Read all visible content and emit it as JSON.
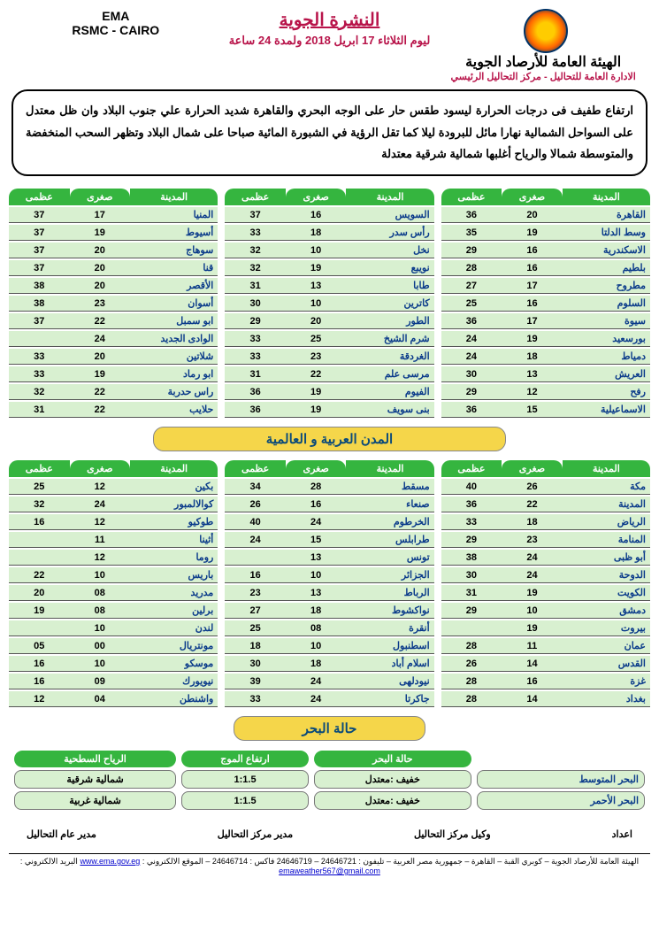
{
  "header": {
    "org_title": "الهيئة العامة للأرصاد الجوية",
    "org_sub": "الادارة العامة للتحاليل - مركز التحاليل الرئيسي",
    "left_line1": "EMA",
    "left_line2": "RSMC - CAIRO",
    "bulletin_title": "النشرة الجوية",
    "bulletin_date": "ليوم الثلاثاء 17 ابريل 2018 ولمدة 24 ساعة"
  },
  "synopsis": "ارتفاع طفيف فى درجات الحرارة ليسود طقس  حار على الوجه البحري والقاهرة  شديد الحرارة علي جنوب البلاد وان ظل معتدل على السواحل الشمالية نهارا مائل للبرودة ليلا  كما تقل الرؤية في الشبورة المائية صباحا على شمال البلاد  وتظهر السحب المنخفضة والمتوسطة شمالا والرياح أغلبها شمالية شرقية  معتدلة",
  "col_headers": {
    "city": "المدينة",
    "min": "صغرى",
    "max": "عظمى"
  },
  "egypt_tables": [
    [
      {
        "city": "القاهرة",
        "min": "20",
        "max": "36"
      },
      {
        "city": "وسط الدلتا",
        "min": "19",
        "max": "35"
      },
      {
        "city": "الاسكندرية",
        "min": "16",
        "max": "29"
      },
      {
        "city": "بلطيم",
        "min": "16",
        "max": "28"
      },
      {
        "city": "مطروح",
        "min": "17",
        "max": "27"
      },
      {
        "city": "السلوم",
        "min": "16",
        "max": "25"
      },
      {
        "city": "سيوة",
        "min": "17",
        "max": "36"
      },
      {
        "city": "بورسعيد",
        "min": "19",
        "max": "24"
      },
      {
        "city": "دمياط",
        "min": "18",
        "max": "24"
      },
      {
        "city": "العريش",
        "min": "13",
        "max": "30"
      },
      {
        "city": "رفح",
        "min": "12",
        "max": "29"
      },
      {
        "city": "الاسماعيلية",
        "min": "15",
        "max": "36"
      }
    ],
    [
      {
        "city": "السويس",
        "min": "16",
        "max": "37"
      },
      {
        "city": "رأس سدر",
        "min": "18",
        "max": "33"
      },
      {
        "city": "نخل",
        "min": "10",
        "max": "32"
      },
      {
        "city": "نويبع",
        "min": "19",
        "max": "32"
      },
      {
        "city": "طابا",
        "min": "13",
        "max": "31"
      },
      {
        "city": "كاترين",
        "min": "10",
        "max": "30"
      },
      {
        "city": "الطور",
        "min": "20",
        "max": "29"
      },
      {
        "city": "شرم الشيخ",
        "min": "25",
        "max": "33"
      },
      {
        "city": "الغردقة",
        "min": "23",
        "max": "33"
      },
      {
        "city": "مرسى علم",
        "min": "22",
        "max": "31"
      },
      {
        "city": "الفيوم",
        "min": "19",
        "max": "36"
      },
      {
        "city": "بنى سويف",
        "min": "19",
        "max": "36"
      }
    ],
    [
      {
        "city": "المنيا",
        "min": "17",
        "max": "37"
      },
      {
        "city": "أسيوط",
        "min": "19",
        "max": "37"
      },
      {
        "city": "سوهاج",
        "min": "20",
        "max": "37"
      },
      {
        "city": "قنا",
        "min": "20",
        "max": "37"
      },
      {
        "city": "الأقصر",
        "min": "20",
        "max": "38"
      },
      {
        "city": "أسوان",
        "min": "23",
        "max": "38"
      },
      {
        "city": "ابو سمبل",
        "min": "22",
        "max": "37"
      },
      {
        "city": "الوادى الجديد",
        "min": "24",
        "max": ""
      },
      {
        "city": "شلاتين",
        "min": "20",
        "max": "33"
      },
      {
        "city": "ابو رماد",
        "min": "19",
        "max": "33"
      },
      {
        "city": "راس حدربة",
        "min": "22",
        "max": "32"
      },
      {
        "city": "حلايب",
        "min": "22",
        "max": "31"
      }
    ]
  ],
  "world_section_title": "المدن العربية و العالمية",
  "world_tables": [
    [
      {
        "city": "مكة",
        "min": "26",
        "max": "40"
      },
      {
        "city": "المدينة",
        "min": "22",
        "max": "36"
      },
      {
        "city": "الرياض",
        "min": "18",
        "max": "33"
      },
      {
        "city": "المنامة",
        "min": "23",
        "max": "29"
      },
      {
        "city": "أبو ظبى",
        "min": "24",
        "max": "38"
      },
      {
        "city": "الدوحة",
        "min": "24",
        "max": "30"
      },
      {
        "city": "الكويت",
        "min": "19",
        "max": "31"
      },
      {
        "city": "دمشق",
        "min": "10",
        "max": "29"
      },
      {
        "city": "بيروت",
        "min": "19",
        "max": ""
      },
      {
        "city": "عمان",
        "min": "11",
        "max": "28"
      },
      {
        "city": "القدس",
        "min": "14",
        "max": "26"
      },
      {
        "city": "غزة",
        "min": "16",
        "max": "28"
      },
      {
        "city": "بغداد",
        "min": "14",
        "max": "28"
      }
    ],
    [
      {
        "city": "مسقط",
        "min": "28",
        "max": "34"
      },
      {
        "city": "صنعاء",
        "min": "16",
        "max": "26"
      },
      {
        "city": "الخرطوم",
        "min": "24",
        "max": "40"
      },
      {
        "city": "طرابلس",
        "min": "15",
        "max": "24"
      },
      {
        "city": "تونس",
        "min": "13",
        "max": ""
      },
      {
        "city": "الجزائر",
        "min": "10",
        "max": "16"
      },
      {
        "city": "الرباط",
        "min": "13",
        "max": "23"
      },
      {
        "city": "نواكشوط",
        "min": "18",
        "max": "27"
      },
      {
        "city": "أنقرة",
        "min": "08",
        "max": "25"
      },
      {
        "city": "اسطنبول",
        "min": "10",
        "max": "18"
      },
      {
        "city": "اسلام أباد",
        "min": "18",
        "max": "30"
      },
      {
        "city": "نيودلهى",
        "min": "24",
        "max": "39"
      },
      {
        "city": "جاكرتا",
        "min": "24",
        "max": "33"
      }
    ],
    [
      {
        "city": "بكين",
        "min": "12",
        "max": "25"
      },
      {
        "city": "كوالالمبور",
        "min": "24",
        "max": "32"
      },
      {
        "city": "طوكيو",
        "min": "12",
        "max": "16"
      },
      {
        "city": "أثينا",
        "min": "11",
        "max": ""
      },
      {
        "city": "روما",
        "min": "12",
        "max": ""
      },
      {
        "city": "باريس",
        "min": "10",
        "max": "22"
      },
      {
        "city": "مدريد",
        "min": "08",
        "max": "20"
      },
      {
        "city": "برلين",
        "min": "08",
        "max": "19"
      },
      {
        "city": "لندن",
        "min": "10",
        "max": ""
      },
      {
        "city": "مونتريال",
        "min": "00",
        "max": "05"
      },
      {
        "city": "موسكو",
        "min": "10",
        "max": "16"
      },
      {
        "city": "نيويورك",
        "min": "09",
        "max": "16"
      },
      {
        "city": "واشنطن",
        "min": "04",
        "max": "12"
      }
    ]
  ],
  "sea_section_title": "حالة البحر",
  "sea_headers": {
    "body": "",
    "state": "حالة البحر",
    "wave": "ارتفاع الموج",
    "wind": "الرياح السطحية"
  },
  "sea_rows": [
    {
      "body": "البحر المتوسط",
      "state": "خفيف :معتدل",
      "wave": "1:1.5",
      "wind": "شمالية شرقية"
    },
    {
      "body": "البحر الأحمر",
      "state": "خفيف :معتدل",
      "wave": "1:1.5",
      "wind": "شمالية غربية"
    }
  ],
  "signatures": [
    "اعداد",
    "وكيل مركز التحاليل",
    "مدير مركز التحاليل",
    "مدير عام التحاليل"
  ],
  "footer": {
    "text": "الهيئة العامة للأرصاد الجوية – كوبري القبة – القاهرة – جمهورية مصر العربية – تليفون : 24646721 – 24646719 فاكس : 24646714 – الموقع الالكتروني :",
    "url": "www.ema.gov.eg",
    "email_label": "البريد الالكتروني :",
    "email": "emaweather567@gmail.com"
  },
  "colors": {
    "header_bg": "#35b53f",
    "row_bg": "#d8f0d0",
    "section_bg": "#f5d64a",
    "accent": "#b8144a",
    "city_color": "#0a3a8a"
  }
}
